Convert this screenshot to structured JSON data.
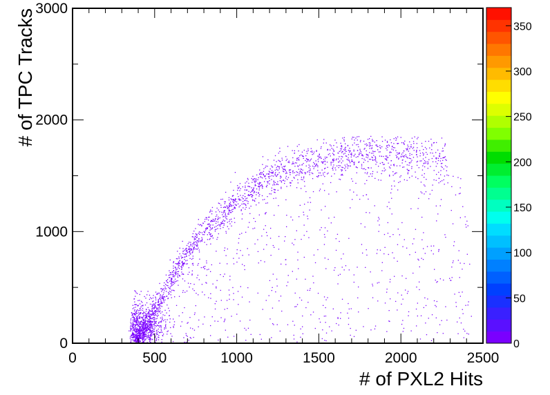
{
  "chart_data": {
    "type": "heatmap",
    "title": "",
    "xlabel": "# of PXL2 Hits",
    "ylabel": "# of TPC Tracks",
    "xlim": [
      0,
      2500
    ],
    "ylim": [
      0,
      3000
    ],
    "x_ticks": [
      "0",
      "500",
      "1000",
      "1500",
      "2000",
      "2500"
    ],
    "y_ticks": [
      "0",
      "1000",
      "2000",
      "3000"
    ],
    "x_major_step": 500,
    "x_minor_step": 100,
    "y_major_step": 1000,
    "y_minor_step": 500,
    "grid": false,
    "colorbar": {
      "min": 0,
      "max": 370,
      "ticks": [
        "0",
        "50",
        "100",
        "150",
        "200",
        "250",
        "300",
        "350"
      ],
      "colors": [
        "#7a00ff",
        "#5a10ff",
        "#3a20ff",
        "#1a30ff",
        "#0040ff",
        "#0060ff",
        "#0080ff",
        "#00a0ff",
        "#00c0ff",
        "#00ddff",
        "#00ffee",
        "#00ffc0",
        "#00ff90",
        "#00ff60",
        "#00ee30",
        "#00dd00",
        "#40ee00",
        "#80ff00",
        "#b0ff00",
        "#ddff00",
        "#ffff00",
        "#ffdd00",
        "#ffbb00",
        "#ff9900",
        "#ff7700",
        "#ff5500",
        "#ff3300",
        "#ff1100"
      ]
    },
    "point_color": "#7a00ff",
    "distribution": {
      "core_band": [
        [
          380,
          0
        ],
        [
          500,
          300
        ],
        [
          650,
          700
        ],
        [
          800,
          1000
        ],
        [
          950,
          1200
        ],
        [
          1100,
          1400
        ],
        [
          1300,
          1550
        ],
        [
          1500,
          1620
        ],
        [
          1700,
          1700
        ],
        [
          2000,
          1700
        ],
        [
          2400,
          1600
        ]
      ],
      "dense_region": {
        "x_range": [
          340,
          560
        ],
        "y_range": [
          0,
          450
        ]
      },
      "diffuse_region": {
        "x_range": [
          350,
          2450
        ],
        "y_range": [
          0,
          1750
        ]
      }
    }
  }
}
